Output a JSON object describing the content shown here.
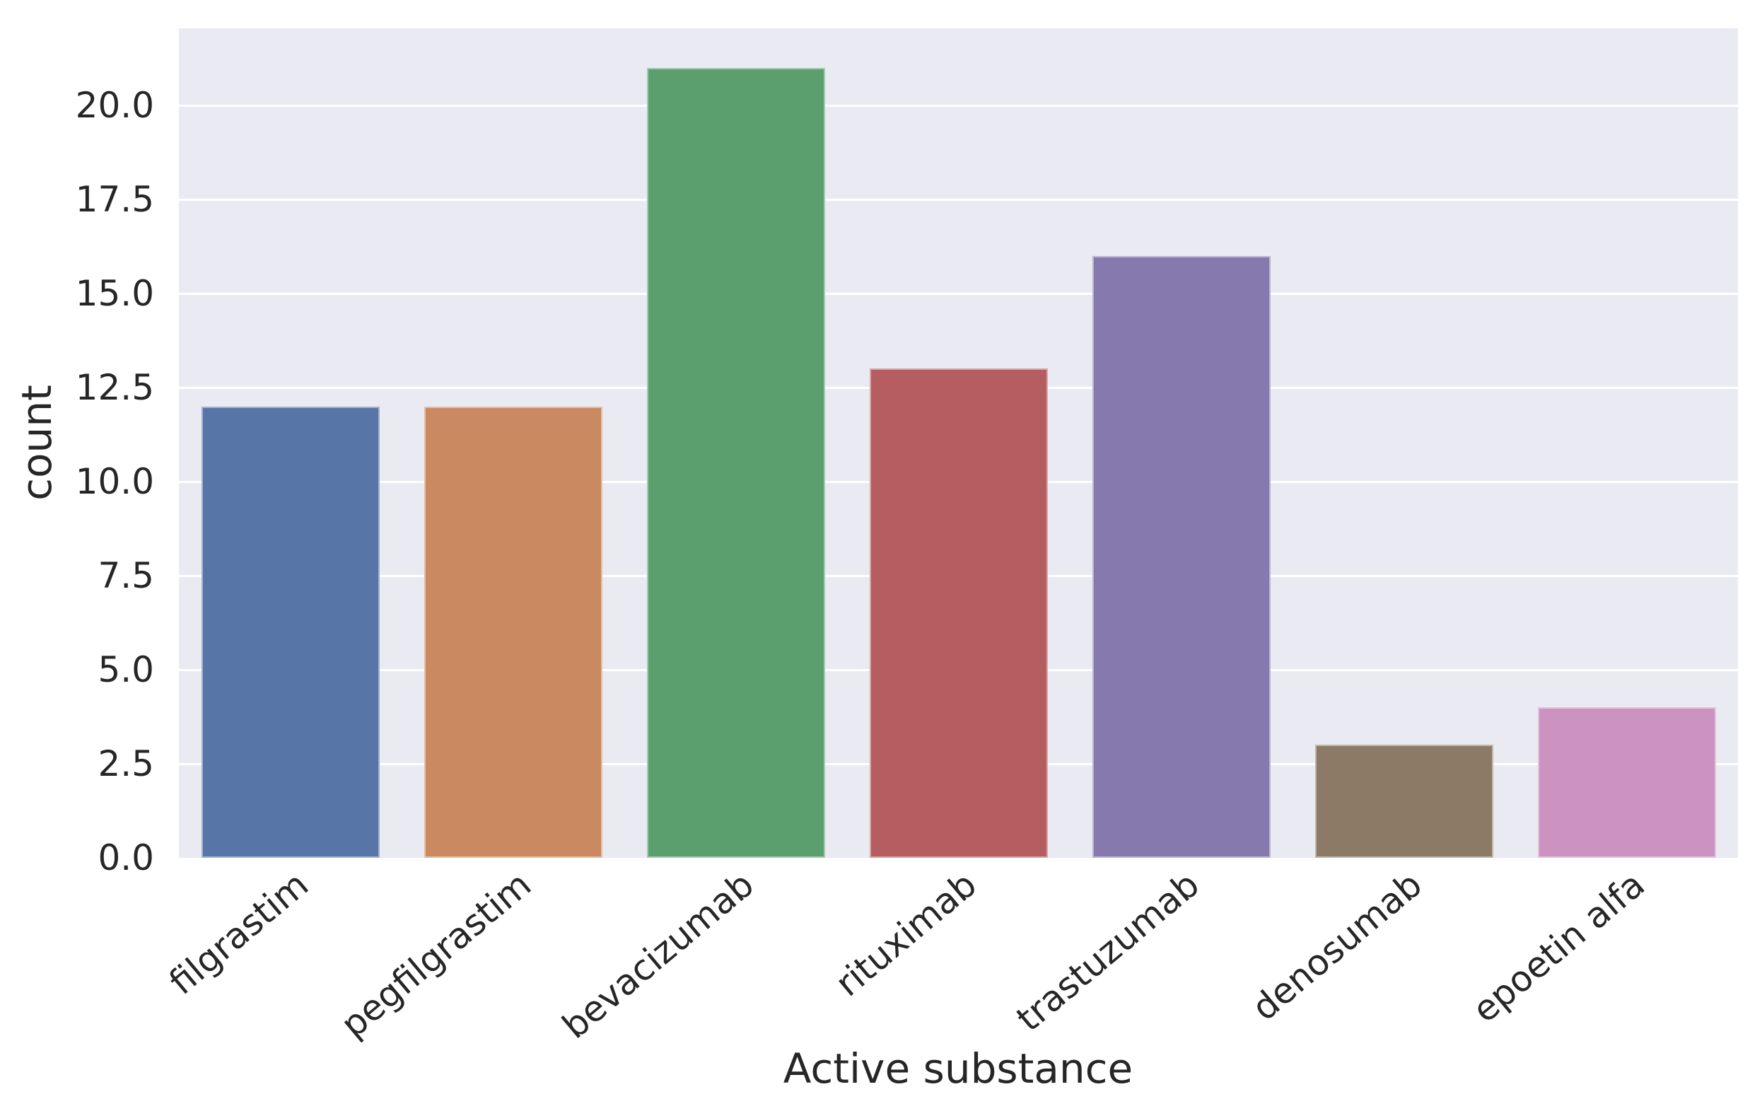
{
  "figure": {
    "background_color": "#ffffff",
    "plot_background_color": "#eaeaf2",
    "grid_color": "#ffffff",
    "text_color": "#262626"
  },
  "chart_data": {
    "type": "bar",
    "title": "",
    "xlabel": "Active substance",
    "ylabel": "count",
    "categories": [
      "filgrastim",
      "pegfilgrastim",
      "bevacizumab",
      "rituximab",
      "trastuzumab",
      "denosumab",
      "epoetin alfa"
    ],
    "values": [
      12,
      12,
      21,
      13,
      16,
      3,
      4
    ],
    "bar_colors": [
      "#5875a8",
      "#cb8961",
      "#5c9f6e",
      "#b55d60",
      "#8579ad",
      "#8c7a66",
      "#cc93c1"
    ],
    "ylim": [
      0,
      22.05
    ],
    "yticks": [
      {
        "value": 0.0,
        "label": "0.0"
      },
      {
        "value": 2.5,
        "label": "2.5"
      },
      {
        "value": 5.0,
        "label": "5.0"
      },
      {
        "value": 7.5,
        "label": "7.5"
      },
      {
        "value": 10.0,
        "label": "10.0"
      },
      {
        "value": 12.5,
        "label": "12.5"
      },
      {
        "value": 15.0,
        "label": "15.0"
      },
      {
        "value": 17.5,
        "label": "17.5"
      },
      {
        "value": 20.0,
        "label": "20.0"
      }
    ],
    "grid": "horizontal",
    "legend_position": "none",
    "x_tick_rotation_deg": 40,
    "bar_width_fraction": 0.8
  }
}
